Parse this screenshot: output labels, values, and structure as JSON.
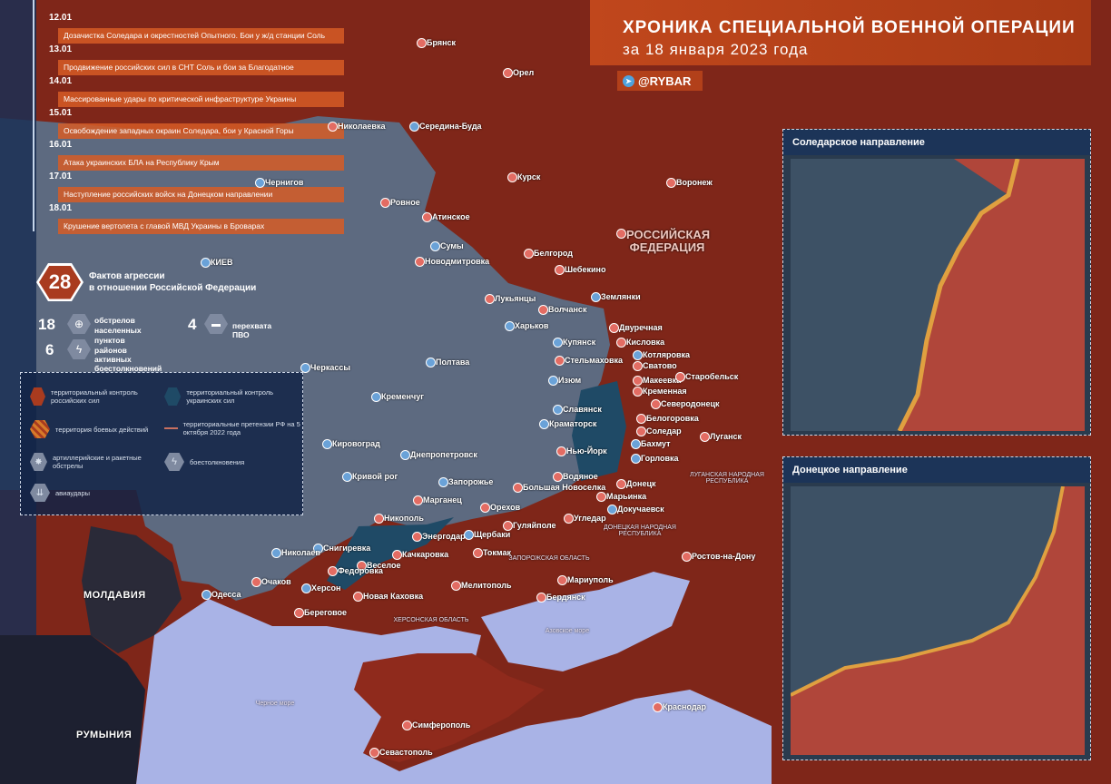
{
  "header": {
    "title": "ХРОНИКА СПЕЦИАЛЬНОЙ ВОЕННОЙ ОПЕРАЦИИ",
    "subtitle": "за 18 января 2023 года",
    "brand": "@RYBAR",
    "brand_icon": "telegram-icon"
  },
  "timeline": [
    {
      "date": "12.01",
      "text": "Дозачистка Соледара и окрестностей Опытного. Бои у ж/д станции Соль"
    },
    {
      "date": "13.01",
      "text": "Продвижение российских сил в СНТ Соль и бои за Благодатное"
    },
    {
      "date": "14.01",
      "text": "Массированные удары по критической инфраструктуре Украины"
    },
    {
      "date": "15.01",
      "text": "Освобождение западных окраин Соледара, бои у Красной Горы"
    },
    {
      "date": "16.01",
      "text": "Атака украинских БЛА на Республику Крым"
    },
    {
      "date": "17.01",
      "text": "Наступление российских войск на Донецком направлении"
    },
    {
      "date": "18.01",
      "text": "Крушение вертолета с главой МВД Украины в Броварах"
    }
  ],
  "stats": {
    "total": "28",
    "total_label_1": "Фактов агрессии",
    "total_label_2": "в отношении Российской Федерации",
    "shelling": "18",
    "shelling_label_1": "обстрелов",
    "shelling_label_2": "населенных пунктов",
    "air_defense": "4",
    "air_defense_label": "перехвата ПВО",
    "clashes": "6",
    "clashes_label": "районов активных боестолкновений"
  },
  "legend": {
    "ru_control": "территориальный контроль российских сил",
    "ua_control": "территориальный контроль украинских сил",
    "combat": "территория боевых действий",
    "claims": "территориальные претензии РФ на 5 октября 2022 года",
    "artillery": "артиллерийские и ракетные обстрелы",
    "clash": "боестолкновения",
    "air": "авиаудары"
  },
  "colors": {
    "russian_control": "#8f2a1c",
    "ukrainian_control": "#3a5068",
    "accent": "#d65c26",
    "sea": "#a9b3e6",
    "panel": "#1c3458"
  },
  "map": {
    "cities": [
      {
        "name": "Брянск",
        "t": "ru"
      },
      {
        "name": "Орел",
        "t": "ru"
      },
      {
        "name": "Николаевка",
        "t": "ru"
      },
      {
        "name": "Середина-Буда",
        "t": "ua"
      },
      {
        "name": "Курск",
        "t": "ru"
      },
      {
        "name": "Воронеж",
        "t": "ru"
      },
      {
        "name": "Чернигов",
        "t": "ua"
      },
      {
        "name": "Ровное",
        "t": "ru"
      },
      {
        "name": "Атинское",
        "t": "ru"
      },
      {
        "name": "Сумы",
        "t": "ua"
      },
      {
        "name": "Новодмитровка",
        "t": "ru"
      },
      {
        "name": "Белгород",
        "t": "ru"
      },
      {
        "name": "Шебекино",
        "t": "ru"
      },
      {
        "name": "Лукьянцы",
        "t": "ru"
      },
      {
        "name": "Волчанск",
        "t": "ru"
      },
      {
        "name": "Землянки",
        "t": "ua"
      },
      {
        "name": "Харьков",
        "t": "ua"
      },
      {
        "name": "Двуречная",
        "t": "ru"
      },
      {
        "name": "Купянск",
        "t": "ua"
      },
      {
        "name": "Кисловка",
        "t": "ru"
      },
      {
        "name": "Котляровка",
        "t": "ua"
      },
      {
        "name": "Стельмаховка",
        "t": "ru"
      },
      {
        "name": "Сватово",
        "t": "ru"
      },
      {
        "name": "Изюм",
        "t": "ua"
      },
      {
        "name": "Макеевка",
        "t": "ru"
      },
      {
        "name": "Старобельск",
        "t": "ru"
      },
      {
        "name": "Кременная",
        "t": "ru"
      },
      {
        "name": "Славянск",
        "t": "ua"
      },
      {
        "name": "Северодонецк",
        "t": "ru"
      },
      {
        "name": "Белогоровка",
        "t": "ru"
      },
      {
        "name": "Краматорск",
        "t": "ua"
      },
      {
        "name": "Соледар",
        "t": "ru"
      },
      {
        "name": "Нью-Йорк",
        "t": "ru"
      },
      {
        "name": "Бахмут",
        "t": "ua"
      },
      {
        "name": "Луганск",
        "t": "ru"
      },
      {
        "name": "Горловка",
        "t": "ua"
      },
      {
        "name": "Водяное",
        "t": "ru"
      },
      {
        "name": "Донецк",
        "t": "ru"
      },
      {
        "name": "Большая Новоселка",
        "t": "ru"
      },
      {
        "name": "Марьинка",
        "t": "ru"
      },
      {
        "name": "Докучаевск",
        "t": "ua"
      },
      {
        "name": "Угледар",
        "t": "ru"
      },
      {
        "name": "Запорожье",
        "t": "ua"
      },
      {
        "name": "Марганец",
        "t": "ru"
      },
      {
        "name": "Орехов",
        "t": "ru"
      },
      {
        "name": "Гуляйполе",
        "t": "ru"
      },
      {
        "name": "Никополь",
        "t": "ru"
      },
      {
        "name": "Энергодар",
        "t": "ru"
      },
      {
        "name": "Щербаки",
        "t": "ua"
      },
      {
        "name": "Токмак",
        "t": "ru"
      },
      {
        "name": "Качкаровка",
        "t": "ru"
      },
      {
        "name": "Снигиревка",
        "t": "ua"
      },
      {
        "name": "Веселое",
        "t": "ru"
      },
      {
        "name": "Николаев",
        "t": "ua"
      },
      {
        "name": "Очаков",
        "t": "ru"
      },
      {
        "name": "Федоровка",
        "t": "ru"
      },
      {
        "name": "Херсон",
        "t": "ua"
      },
      {
        "name": "Новая Каховка",
        "t": "ru"
      },
      {
        "name": "Одесса",
        "t": "ua"
      },
      {
        "name": "Береговое",
        "t": "ru"
      },
      {
        "name": "Мелитополь",
        "t": "ru"
      },
      {
        "name": "Мариуполь",
        "t": "ru"
      },
      {
        "name": "Бердянск",
        "t": "ru"
      },
      {
        "name": "Ростов-на-Дону",
        "t": "ru"
      },
      {
        "name": "Симферополь",
        "t": "ru"
      },
      {
        "name": "Севастополь",
        "t": "ru"
      },
      {
        "name": "Краснодар",
        "t": "ru"
      },
      {
        "name": "КИЕВ",
        "t": "ua"
      },
      {
        "name": "Черкассы",
        "t": "ua"
      },
      {
        "name": "Полтава",
        "t": "ua"
      },
      {
        "name": "Кременчуг",
        "t": "ua"
      },
      {
        "name": "Кировоград",
        "t": "ua"
      },
      {
        "name": "Днепропетровск",
        "t": "ua"
      },
      {
        "name": "Кривой рог",
        "t": "ua"
      }
    ],
    "regions": {
      "russia": "РОССИЙСКАЯ ФЕДЕРАЦИЯ",
      "moldova": "МОЛДАВИЯ",
      "romania": "РУМЫНИЯ",
      "azov": "Азовское море",
      "black": "Черное море",
      "zap_obl": "ЗАПОРОЖСКАЯ ОБЛАСТЬ",
      "kherson_obl": "ХЕРСОНСКАЯ ОБЛАСТЬ",
      "lnr": "ЛУГАНСКАЯ НАРОДНАЯ РЕСПУБЛИКА",
      "dnr": "ДОНЕЦКАЯ НАРОДНАЯ РЕСПУБЛИКА"
    }
  },
  "insets": [
    {
      "title": "Соледарское направление"
    },
    {
      "title": "Донецкое направление"
    }
  ]
}
